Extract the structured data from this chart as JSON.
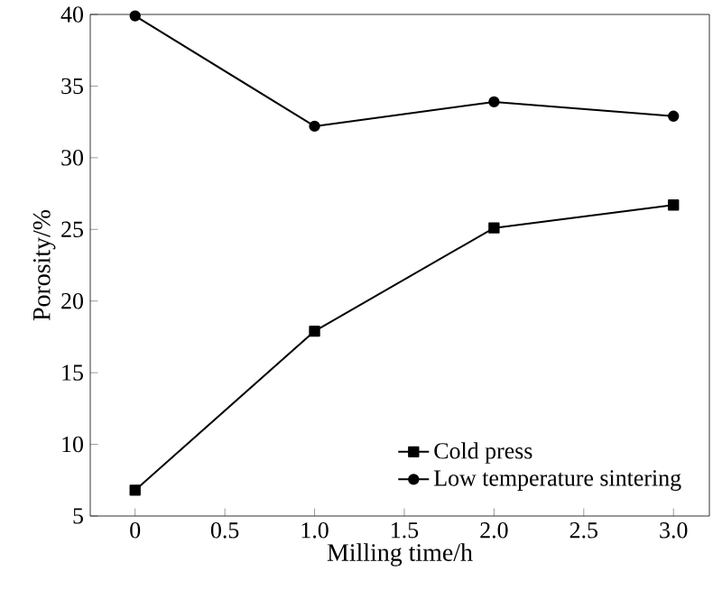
{
  "chart_data": {
    "type": "line",
    "xlabel": "Milling time/h",
    "ylabel": "Porosity/%",
    "x": [
      0,
      1,
      2,
      3
    ],
    "series": [
      {
        "name": "Cold press",
        "color": "#000000",
        "marker": "square",
        "values": [
          6.8,
          17.9,
          25.1,
          26.7
        ]
      },
      {
        "name": "Low temperature sintering",
        "color": "#000000",
        "marker": "circle",
        "values": [
          39.9,
          32.2,
          33.9,
          32.9
        ]
      }
    ],
    "xlim": [
      -0.25,
      3.2
    ],
    "ylim": [
      5,
      40
    ],
    "xticks": [
      0,
      {
        "value": 0.5,
        "label": "0.5"
      },
      {
        "value": 1,
        "label": "1.0"
      },
      {
        "value": 1.5,
        "label": "1.5"
      },
      {
        "value": 2,
        "label": "2.0"
      },
      {
        "value": 2.5,
        "label": "2.5"
      },
      {
        "value": 3,
        "label": "3.0"
      }
    ],
    "yticks": [
      5,
      10,
      15,
      20,
      25,
      30,
      35,
      40
    ],
    "legend": "bottom right",
    "grid": false,
    "line_style": "solid"
  }
}
